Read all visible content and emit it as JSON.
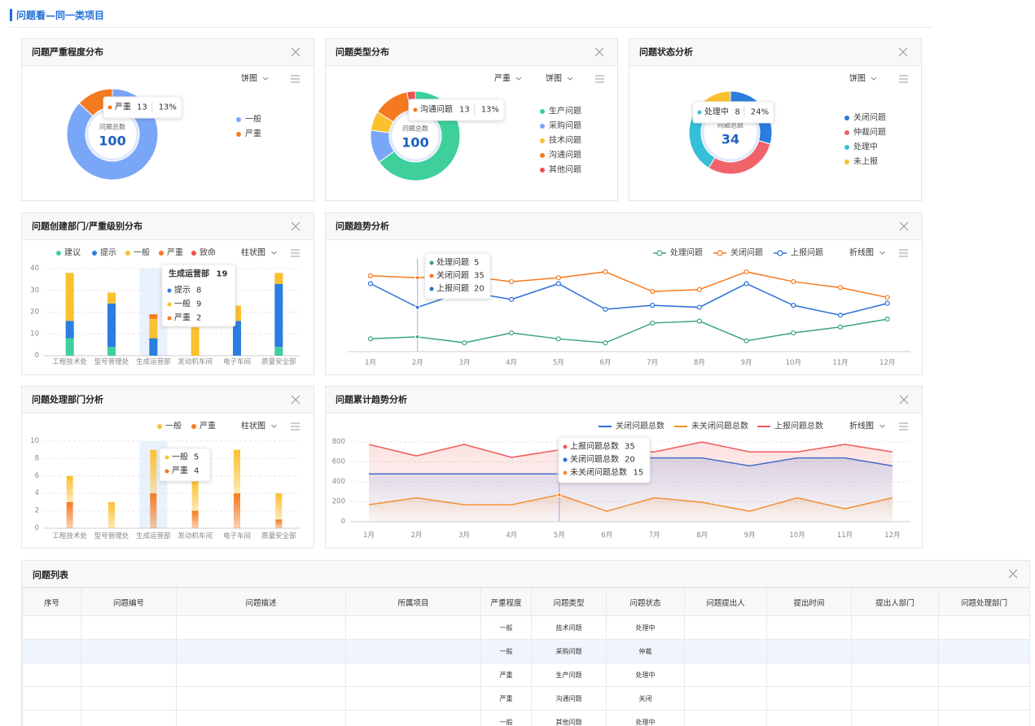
{
  "page_title": "问题看—同一类项目",
  "chart_data": [
    {
      "type": "pie",
      "title": "问题严重程度分布",
      "controls": [
        "饼图"
      ],
      "center_label": "问题总数",
      "center_value": 100,
      "categories": [
        "一般",
        "严重"
      ],
      "values": [
        87,
        13
      ],
      "colors": [
        "#7aa6f8",
        "#f57a1f"
      ],
      "tooltip_share": "13%"
    },
    {
      "type": "pie",
      "title": "问题类型分布",
      "controls": [
        "严重",
        "饼图"
      ],
      "center_label": "问题总数",
      "center_value": 100,
      "categories": [
        "生产问题",
        "采购问题",
        "技术问题",
        "沟通问题",
        "其他问题"
      ],
      "values": [
        65,
        12,
        7,
        13,
        3
      ],
      "colors": [
        "#3ecf9b",
        "#7aa6f8",
        "#fbc02d",
        "#f57a1f",
        "#ef4f4f"
      ],
      "tooltip_share": "13%"
    },
    {
      "type": "pie",
      "title": "问题状态分析",
      "controls": [
        "饼图"
      ],
      "center_label": "问题总数",
      "center_value": 34,
      "categories": [
        "关闭问题",
        "仲裁问题",
        "处理中",
        "未上报"
      ],
      "values": [
        10,
        10,
        8,
        6
      ],
      "colors": [
        "#2b7de0",
        "#f0636a",
        "#36c0d8",
        "#fbc02d"
      ],
      "tooltip_share": "24%"
    },
    {
      "type": "bar",
      "title": "问题创建部门/严重级别分布",
      "controls": [
        "柱状图"
      ],
      "categories": [
        "工程技术处",
        "型号管理处",
        "生成运营部",
        "发动机车间",
        "电子车间",
        "质量安全部"
      ],
      "series": [
        {
          "name": "建议",
          "color": "#3ecf9b",
          "values": [
            8,
            4,
            0,
            0,
            0,
            4
          ]
        },
        {
          "name": "提示",
          "color": "#2b7de0",
          "values": [
            8,
            20,
            8,
            0,
            16,
            29
          ]
        },
        {
          "name": "一般",
          "color": "#fbc02d",
          "values": [
            22,
            5,
            9,
            13,
            7,
            5
          ]
        },
        {
          "name": "严重",
          "color": "#f57a1f",
          "values": [
            0,
            0,
            2,
            0,
            0,
            0
          ]
        },
        {
          "name": "致命",
          "color": "#ef4f4f",
          "values": [
            0,
            0,
            0,
            0,
            0,
            0
          ]
        }
      ],
      "ylim": [
        0,
        40
      ],
      "yticks": [
        0,
        10,
        20,
        30,
        40
      ],
      "grid": true,
      "tooltip_total": 19
    },
    {
      "type": "line",
      "title": "问题趋势分析",
      "controls": [
        "折线图"
      ],
      "categories": [
        "1月",
        "2月",
        "3月",
        "4月",
        "5月",
        "6月",
        "7月",
        "8月",
        "9月",
        "10月",
        "11月",
        "12月"
      ],
      "series": [
        {
          "name": "处理问题",
          "color": "#3aa57c",
          "values": [
            4,
            5,
            2,
            7,
            4,
            2,
            12,
            13,
            3,
            7,
            10,
            14
          ]
        },
        {
          "name": "关闭问题",
          "color": "#f57a1f",
          "values": [
            36,
            35,
            36,
            33,
            35,
            38,
            28,
            29,
            38,
            33,
            30,
            25
          ]
        },
        {
          "name": "上报问题",
          "color": "#2b6fd6",
          "values": [
            32,
            20,
            28,
            24,
            32,
            19,
            21,
            20,
            32,
            21,
            16,
            22
          ]
        }
      ],
      "ylim": [
        0,
        45
      ]
    },
    {
      "type": "bar",
      "title": "问题处理部门分析",
      "controls": [
        "柱状图"
      ],
      "categories": [
        "工程技术处",
        "型号管理处",
        "生成运营部",
        "发动机车间",
        "电子车间",
        "质量安全部"
      ],
      "series": [
        {
          "name": "严重",
          "color": "#f57a1f",
          "values": [
            3,
            0,
            4,
            2,
            4,
            1
          ]
        },
        {
          "name": "一般",
          "color": "#fbc02d",
          "values": [
            3,
            3,
            5,
            3.5,
            5,
            3
          ]
        }
      ],
      "ylim": [
        0,
        10
      ],
      "yticks": [
        0,
        2,
        4,
        6,
        8,
        10
      ],
      "grid": true
    },
    {
      "type": "area",
      "title": "问题累计趋势分析",
      "controls": [
        "折线图"
      ],
      "categories": [
        "1月",
        "2月",
        "3月",
        "4月",
        "5月",
        "6月",
        "7月",
        "8月",
        "9月",
        "10月",
        "11月",
        "12月"
      ],
      "series": [
        {
          "name": "关闭问题总数",
          "color": "#2b6fd6",
          "values": [
            480,
            480,
            480,
            480,
            480,
            640,
            640,
            640,
            560,
            640,
            640,
            560
          ]
        },
        {
          "name": "未关闭问题总数",
          "color": "#f5922f",
          "values": [
            170,
            240,
            170,
            170,
            270,
            105,
            240,
            195,
            105,
            240,
            130,
            240
          ]
        },
        {
          "name": "上报问题总数",
          "color": "#ef5a5a",
          "values": [
            775,
            660,
            775,
            645,
            720,
            720,
            700,
            800,
            700,
            700,
            775,
            700
          ]
        }
      ],
      "ylim": [
        0,
        800
      ],
      "yticks": [
        0,
        200,
        400,
        600,
        800
      ],
      "grid": true,
      "tooltip_values": [
        20,
        15,
        35
      ]
    }
  ],
  "table": {
    "title": "问题列表",
    "headers": [
      "序号",
      "问题编号",
      "问题描述",
      "所属项目",
      "严重程度",
      "问题类型",
      "问题状态",
      "问题提出人",
      "提出时间",
      "提出人部门",
      "问题处理部门"
    ],
    "rows": [
      [
        "一般",
        "技术问题",
        "处理中"
      ],
      [
        "一般",
        "采购问题",
        "仲裁"
      ],
      [
        "严重",
        "生产问题",
        "处理中"
      ],
      [
        "严重",
        "沟通问题",
        "关闭"
      ],
      [
        "一般",
        "其他问题",
        "处理中"
      ]
    ]
  }
}
